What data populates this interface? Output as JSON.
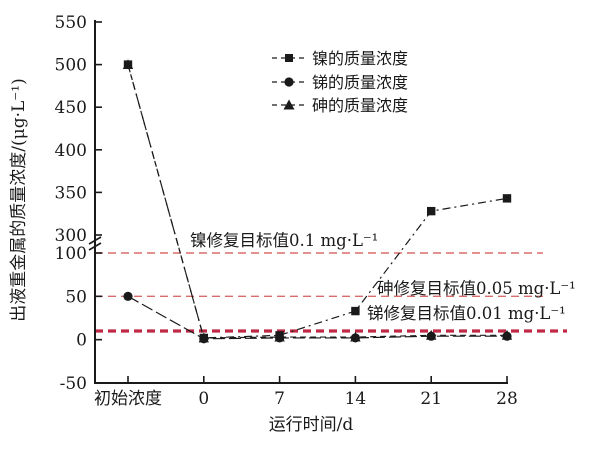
{
  "chart_data": {
    "type": "line",
    "title": "",
    "xlabel": "运行时间/d",
    "ylabel": "出液重金属的质量浓度/(μg·L⁻¹)",
    "categories": [
      "初始浓度",
      "0",
      "7",
      "14",
      "21",
      "28"
    ],
    "y_ticks": [
      -50,
      0,
      50,
      100,
      300,
      350,
      400,
      450,
      500,
      550
    ],
    "axis_break": {
      "between": [
        100,
        300
      ]
    },
    "ylim_lower": [
      -50,
      100
    ],
    "ylim_upper": [
      300,
      550
    ],
    "grid": false,
    "legend_position": "top-center",
    "series_color": "#1a1a1a",
    "series": [
      {
        "name": "镍的质量浓度",
        "marker": "square",
        "values": [
          500,
          2,
          5,
          33,
          328,
          343
        ]
      },
      {
        "name": "锑的质量浓度",
        "marker": "circle",
        "values": [
          50,
          1,
          2,
          2,
          4,
          4
        ]
      },
      {
        "name": "砷的质量浓度",
        "marker": "triangle",
        "values": [
          500,
          2,
          3,
          3,
          5,
          5
        ]
      }
    ],
    "target_lines": [
      {
        "label": "镍修复目标值0.1 mg·L⁻¹",
        "value": 100,
        "color": "#d96b6b",
        "weight": "thin"
      },
      {
        "label": "砷修复目标值0.05 mg·L⁻¹",
        "value": 50,
        "color": "#d96b6b",
        "weight": "thin"
      },
      {
        "label": "锑修复目标值0.01 mg·L⁻¹",
        "value": 10,
        "color": "#c02945",
        "weight": "thick"
      }
    ]
  }
}
